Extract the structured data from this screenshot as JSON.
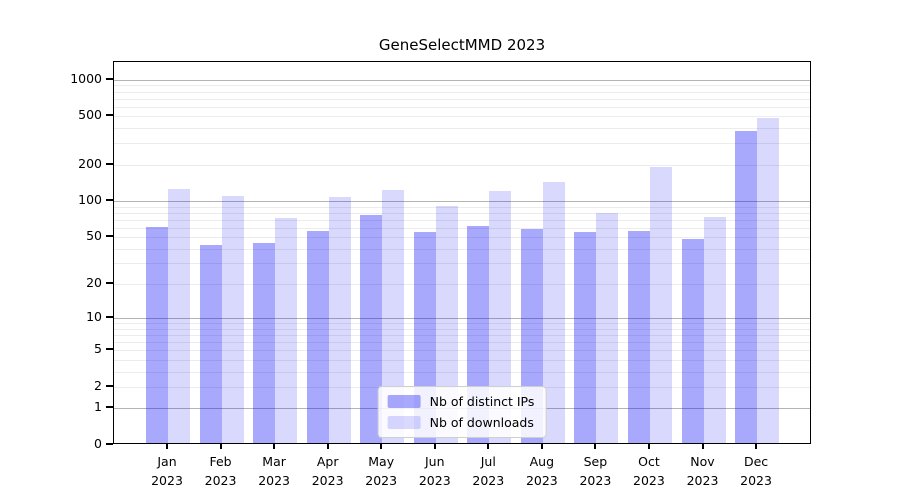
{
  "chart_data": {
    "type": "bar",
    "title": "GeneSelectMMD 2023",
    "categories": [
      "Jan 2023",
      "Feb 2023",
      "Mar 2023",
      "Apr 2023",
      "May 2023",
      "Jun 2023",
      "Jul 2023",
      "Aug 2023",
      "Sep 2023",
      "Oct 2023",
      "Nov 2023",
      "Dec 2023"
    ],
    "months": [
      "Jan",
      "Feb",
      "Mar",
      "Apr",
      "May",
      "Jun",
      "Jul",
      "Aug",
      "Sep",
      "Oct",
      "Nov",
      "Dec"
    ],
    "year_label": "2023",
    "series": [
      {
        "name": "Nb of distinct IPs",
        "color": "rgba(0,0,245,0.34)",
        "values": [
          59,
          41,
          43,
          54,
          74,
          53,
          60,
          56,
          53,
          54,
          46,
          367
        ]
      },
      {
        "name": "Nb of downloads",
        "color": "rgba(0,0,245,0.15)",
        "values": [
          121,
          105,
          70,
          103,
          119,
          87,
          117,
          138,
          77,
          185,
          71,
          463
        ]
      }
    ],
    "yscale": "log1p",
    "y_ticks": [
      0,
      1,
      2,
      5,
      10,
      20,
      50,
      100,
      200,
      500,
      1000
    ],
    "ylim": [
      0,
      1400
    ],
    "grid": {
      "major_lines": [
        1,
        10,
        100,
        1000
      ],
      "minor_multipliers": [
        2,
        3,
        4,
        5,
        6,
        7,
        8,
        9
      ],
      "minor_decades": [
        1,
        10,
        100
      ]
    },
    "legend_position": "lower center",
    "colors": {
      "major_grid": "#b4b4b4",
      "minor_grid": "#ececec",
      "spine": "#000000",
      "bar_distinct_ips": "rgba(0,0,245,0.34)",
      "bar_downloads": "rgba(0,0,245,0.15)"
    }
  }
}
